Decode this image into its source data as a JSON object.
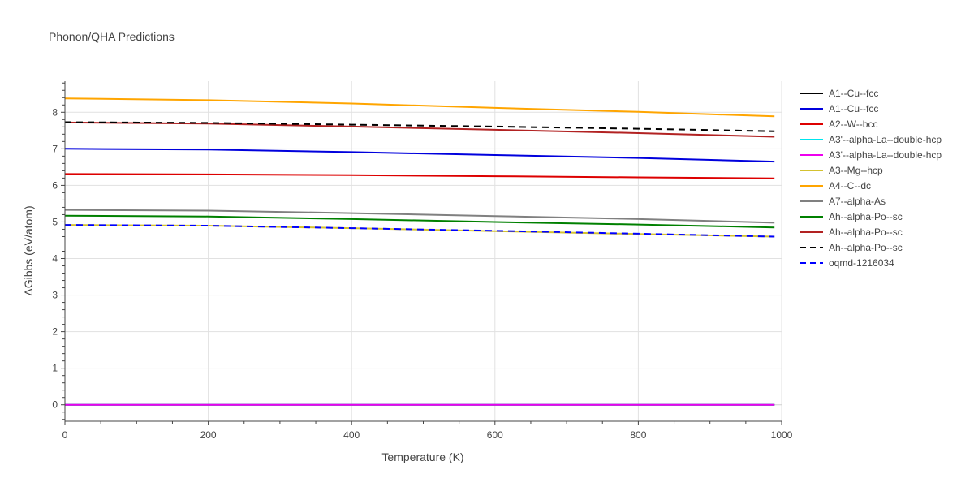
{
  "chart_data": {
    "type": "line",
    "title": "Phonon/QHA Predictions",
    "xlabel": "Temperature (K)",
    "ylabel": "ΔGibbs (eV/atom)",
    "xlim": [
      0,
      1000
    ],
    "ylim": [
      -0.45,
      8.85
    ],
    "x_ticks": [
      0,
      200,
      400,
      600,
      800,
      1000
    ],
    "y_ticks": [
      0,
      1,
      2,
      3,
      4,
      5,
      6,
      7,
      8
    ],
    "grid": true,
    "legend_position": "right",
    "series": [
      {
        "name": "A1--Cu--fcc",
        "color": "#000000",
        "dash": "solid",
        "x": [
          0,
          990
        ],
        "y": [
          0,
          0
        ]
      },
      {
        "name": "A1--Cu--fcc",
        "color": "#0000dd",
        "dash": "solid",
        "x": [
          0,
          200,
          400,
          600,
          800,
          990
        ],
        "y": [
          7.0,
          6.98,
          6.91,
          6.83,
          6.75,
          6.65
        ]
      },
      {
        "name": "A2--W--bcc",
        "color": "#dd0000",
        "dash": "solid",
        "x": [
          0,
          200,
          400,
          600,
          800,
          990
        ],
        "y": [
          6.31,
          6.3,
          6.28,
          6.25,
          6.22,
          6.19
        ]
      },
      {
        "name": "A3'--alpha-La--double-hcp",
        "color": "#00e5ee",
        "dash": "solid",
        "x": [
          0,
          990
        ],
        "y": [
          0,
          0
        ]
      },
      {
        "name": "A3'--alpha-La--double-hcp",
        "color": "#ee00ee",
        "dash": "solid",
        "x": [
          0,
          990
        ],
        "y": [
          0,
          0
        ]
      },
      {
        "name": "A3--Mg--hcp",
        "color": "#d4c230",
        "dash": "solid",
        "x": [
          0,
          200,
          400,
          600,
          800,
          990
        ],
        "y": [
          4.92,
          4.9,
          4.83,
          4.75,
          4.67,
          4.6
        ]
      },
      {
        "name": "A4--C--dc",
        "color": "#ffa500",
        "dash": "solid",
        "x": [
          0,
          200,
          400,
          600,
          800,
          990
        ],
        "y": [
          8.38,
          8.33,
          8.24,
          8.12,
          8.01,
          7.89
        ]
      },
      {
        "name": "A7--alpha-As",
        "color": "#808080",
        "dash": "solid",
        "x": [
          0,
          200,
          400,
          600,
          800,
          990
        ],
        "y": [
          5.33,
          5.31,
          5.24,
          5.16,
          5.08,
          4.98
        ]
      },
      {
        "name": "Ah--alpha-Po--sc",
        "color": "#008000",
        "dash": "solid",
        "x": [
          0,
          200,
          400,
          600,
          800,
          990
        ],
        "y": [
          5.17,
          5.15,
          5.08,
          5.0,
          4.93,
          4.85
        ]
      },
      {
        "name": "Ah--alpha-Po--sc",
        "color": "#b22222",
        "dash": "solid",
        "x": [
          0,
          200,
          400,
          600,
          800,
          990
        ],
        "y": [
          7.72,
          7.69,
          7.61,
          7.52,
          7.43,
          7.33
        ]
      },
      {
        "name": "Ah--alpha-Po--sc",
        "color": "#000000",
        "dash": "dash",
        "x": [
          0,
          200,
          400,
          600,
          800,
          990
        ],
        "y": [
          7.73,
          7.71,
          7.66,
          7.61,
          7.55,
          7.48
        ]
      },
      {
        "name": "oqmd-1216034",
        "color": "#0000ff",
        "dash": "dash",
        "x": [
          0,
          200,
          400,
          600,
          800,
          990
        ],
        "y": [
          4.92,
          4.9,
          4.83,
          4.76,
          4.68,
          4.6
        ]
      }
    ]
  }
}
